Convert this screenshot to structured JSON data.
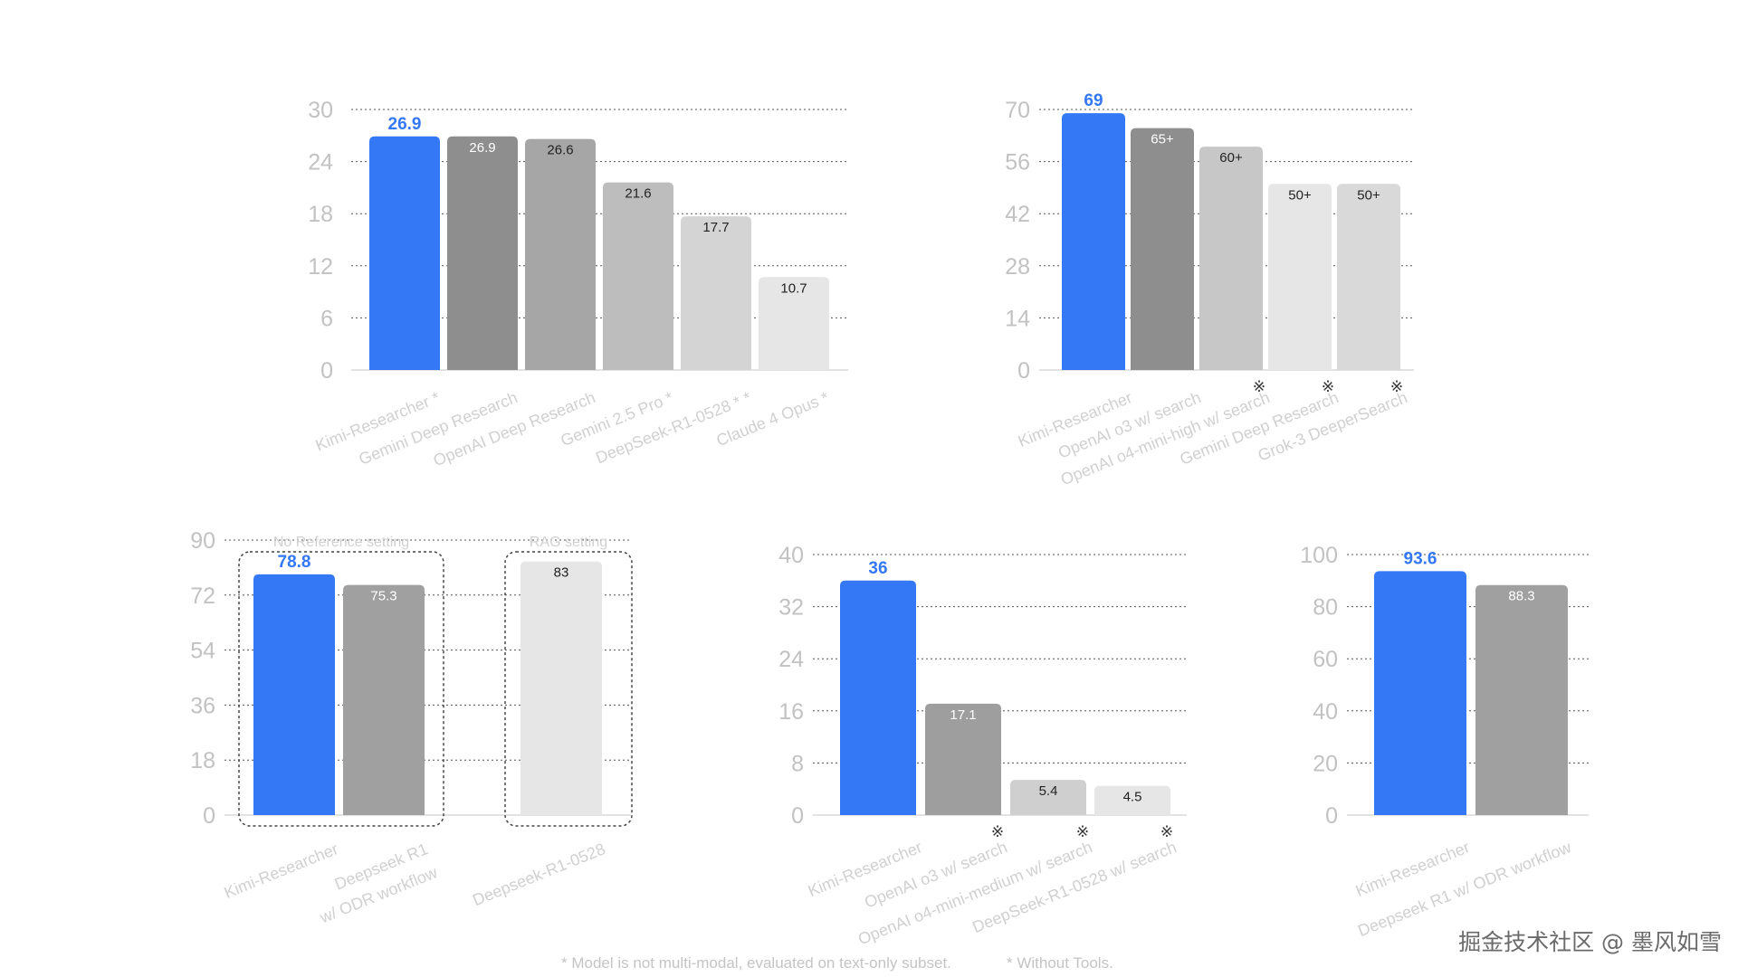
{
  "colors": {
    "accent": "#3478f6",
    "grid": "#555555",
    "tick": "#c2c2c2",
    "category": "#d0d0d0"
  },
  "chart_data": [
    {
      "type": "bar",
      "categories": [
        "Kimi-Researcher *",
        "Gemini Deep Research",
        "OpenAI Deep Research",
        "Gemini 2.5 Pro *",
        "DeepSeek-R1-0528 * *",
        "Claude 4 Opus *"
      ],
      "values": [
        26.9,
        26.9,
        26.6,
        21.6,
        17.7,
        10.7
      ],
      "value_labels": [
        "26.9",
        "26.9",
        "26.6",
        "21.6",
        "17.7",
        "10.7"
      ],
      "yticks": [
        "0",
        "6",
        "12",
        "18",
        "24",
        "30"
      ],
      "ylim": [
        0,
        30
      ],
      "grid": true,
      "bar_colors": [
        "#3478f6",
        "#8e8e8e",
        "#a6a6a6",
        "#bdbdbd",
        "#d4d4d4",
        "#e6e6e6"
      ]
    },
    {
      "type": "bar",
      "categories": [
        "Kimi-Researcher",
        "OpenAI o3 w/ search",
        "OpenAI o4-mini-high w/ search",
        "Gemini Deep Research",
        "Grok-3 DeeperSearch"
      ],
      "values": [
        69,
        65,
        60,
        50,
        50
      ],
      "value_labels": [
        "69",
        "65+",
        "60+",
        "50+",
        "50+"
      ],
      "marks": [
        "",
        "",
        "※",
        "※",
        "※"
      ],
      "yticks": [
        "0",
        "14",
        "28",
        "42",
        "56",
        "70"
      ],
      "ylim": [
        0,
        70
      ],
      "grid": true,
      "bar_colors": [
        "#3478f6",
        "#8e8e8e",
        "#c7c7c7",
        "#e6e6e6",
        "#d9d9d9"
      ]
    },
    {
      "type": "bar",
      "categories": [
        "Kimi-Researcher",
        "Deepseek R1\nw/ ODR workflow",
        "Deepseek-R1-0528"
      ],
      "values": [
        78.8,
        75.3,
        83
      ],
      "value_labels": [
        "78.8",
        "75.3",
        "83"
      ],
      "yticks": [
        "0",
        "18",
        "36",
        "54",
        "72",
        "90"
      ],
      "ylim": [
        0,
        90
      ],
      "grid": true,
      "groups": [
        "No Reference setting",
        "RAG setting"
      ],
      "bar_colors": [
        "#3478f6",
        "#a0a0a0",
        "#e6e6e6"
      ]
    },
    {
      "type": "bar",
      "categories": [
        "Kimi-Researcher",
        "OpenAI o3 w/ search",
        "OpenAI o4-mini-medium w/ search",
        "DeepSeek-R1-0528 w/ search"
      ],
      "values": [
        36,
        17.1,
        5.4,
        4.5
      ],
      "value_labels": [
        "36",
        "17.1",
        "5.4",
        "4.5"
      ],
      "marks": [
        "",
        "※",
        "※",
        "※"
      ],
      "yticks": [
        "0",
        "8",
        "16",
        "24",
        "32",
        "40"
      ],
      "ylim": [
        0,
        40
      ],
      "grid": true,
      "bar_colors": [
        "#3478f6",
        "#9e9e9e",
        "#cfcfcf",
        "#e6e6e6"
      ]
    },
    {
      "type": "bar",
      "categories": [
        "Kimi-Researcher",
        "Deepseek R1 w/ ODR workflow"
      ],
      "values": [
        93.6,
        88.3
      ],
      "value_labels": [
        "93.6",
        "88.3"
      ],
      "yticks": [
        "0",
        "20",
        "40",
        "60",
        "80",
        "100"
      ],
      "ylim": [
        0,
        100
      ],
      "grid": true,
      "bar_colors": [
        "#3478f6",
        "#a0a0a0"
      ]
    }
  ],
  "footnotes": {
    "model": "* Model is not multi-modal, evaluated on text-only subset.",
    "tools": "* Without Tools."
  },
  "watermark": "掘金技术社区 @ 墨风如雪"
}
